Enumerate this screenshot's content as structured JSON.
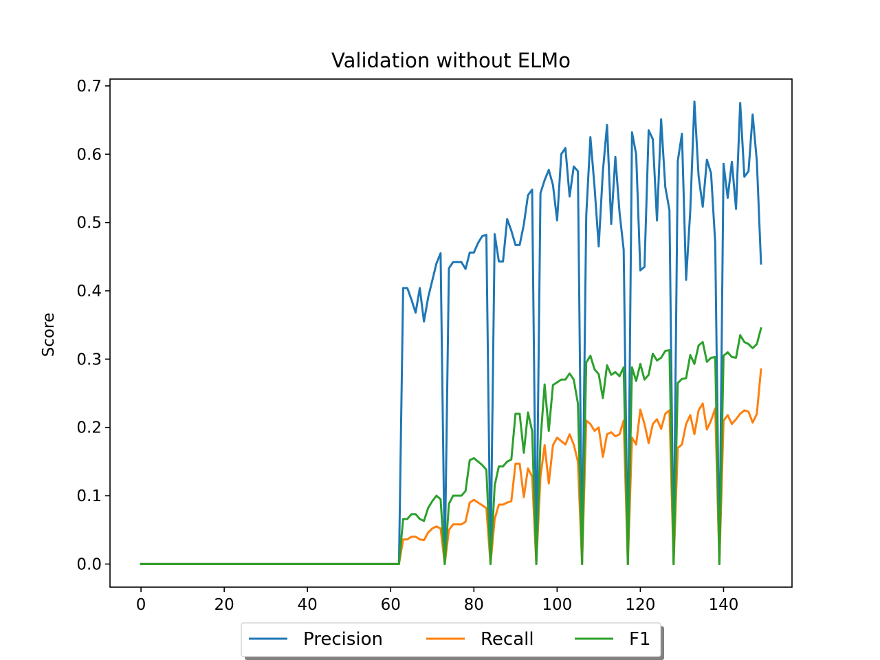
{
  "chart_data": {
    "type": "line",
    "title": "Validation without ELMo",
    "xlabel": "",
    "ylabel": "Score",
    "xlim": [
      -7.45,
      156.45
    ],
    "ylim": [
      -0.0338,
      0.71
    ],
    "xticks": [
      0,
      20,
      40,
      60,
      80,
      100,
      120,
      140
    ],
    "xtick_labels": [
      "0",
      "20",
      "40",
      "60",
      "80",
      "100",
      "120",
      "140"
    ],
    "yticks": [
      0.0,
      0.1,
      0.2,
      0.3,
      0.4,
      0.5,
      0.6,
      0.7
    ],
    "ytick_labels": [
      "0.0",
      "0.1",
      "0.2",
      "0.3",
      "0.4",
      "0.5",
      "0.6",
      "0.7"
    ],
    "grid": false,
    "legend_position": "bottom-center",
    "legend_columns": 3,
    "x_start": 0,
    "x_step": 1,
    "series": [
      {
        "name": "Precision",
        "color": "#1f77b4",
        "values": [
          0,
          0,
          0,
          0,
          0,
          0,
          0,
          0,
          0,
          0,
          0,
          0,
          0,
          0,
          0,
          0,
          0,
          0,
          0,
          0,
          0,
          0,
          0,
          0,
          0,
          0,
          0,
          0,
          0,
          0,
          0,
          0,
          0,
          0,
          0,
          0,
          0,
          0,
          0,
          0,
          0,
          0,
          0,
          0,
          0,
          0,
          0,
          0,
          0,
          0,
          0,
          0,
          0,
          0,
          0,
          0,
          0,
          0,
          0,
          0,
          0,
          0,
          0,
          0.404,
          0.404,
          0.387,
          0.368,
          0.404,
          0.355,
          0.39,
          0.415,
          0.44,
          0.455,
          0,
          0.433,
          0.442,
          0.442,
          0.442,
          0.432,
          0.456,
          0.456,
          0.47,
          0.48,
          0.482,
          0,
          0.483,
          0.443,
          0.443,
          0.505,
          0.488,
          0.467,
          0.467,
          0.497,
          0.54,
          0.548,
          0,
          0.543,
          0.562,
          0.577,
          0.555,
          0.503,
          0.6,
          0.609,
          0.538,
          0.582,
          0.575,
          0,
          0.51,
          0.625,
          0.552,
          0.465,
          0.575,
          0.643,
          0.498,
          0.596,
          0.515,
          0.46,
          0,
          0.632,
          0.6,
          0.43,
          0.435,
          0.635,
          0.622,
          0.503,
          0.651,
          0.552,
          0.518,
          0,
          0.59,
          0.63,
          0.416,
          0.517,
          0.677,
          0.568,
          0.523,
          0.592,
          0.572,
          0.47,
          0,
          0.586,
          0.536,
          0.589,
          0.52,
          0.675,
          0.567,
          0.575,
          0.658,
          0.59,
          0.44
        ]
      },
      {
        "name": "Recall",
        "color": "#ff7f0e",
        "values": [
          0,
          0,
          0,
          0,
          0,
          0,
          0,
          0,
          0,
          0,
          0,
          0,
          0,
          0,
          0,
          0,
          0,
          0,
          0,
          0,
          0,
          0,
          0,
          0,
          0,
          0,
          0,
          0,
          0,
          0,
          0,
          0,
          0,
          0,
          0,
          0,
          0,
          0,
          0,
          0,
          0,
          0,
          0,
          0,
          0,
          0,
          0,
          0,
          0,
          0,
          0,
          0,
          0,
          0,
          0,
          0,
          0,
          0,
          0,
          0,
          0,
          0,
          0,
          0.036,
          0.036,
          0.04,
          0.04,
          0.036,
          0.035,
          0.046,
          0.052,
          0.055,
          0.052,
          0,
          0.05,
          0.058,
          0.058,
          0.058,
          0.062,
          0.09,
          0.094,
          0.09,
          0.086,
          0.082,
          0,
          0.066,
          0.087,
          0.087,
          0.09,
          0.092,
          0.147,
          0.147,
          0.098,
          0.14,
          0.128,
          0,
          0.128,
          0.174,
          0.118,
          0.174,
          0.185,
          0.18,
          0.175,
          0.19,
          0.175,
          0.15,
          0,
          0.21,
          0.205,
          0.195,
          0.2,
          0.157,
          0.19,
          0.193,
          0.187,
          0.19,
          0.21,
          0,
          0.185,
          0.175,
          0.226,
          0.205,
          0.177,
          0.205,
          0.212,
          0.198,
          0.22,
          0.225,
          0,
          0.17,
          0.175,
          0.205,
          0.218,
          0.19,
          0.225,
          0.235,
          0.197,
          0.21,
          0.228,
          0,
          0.21,
          0.218,
          0.205,
          0.212,
          0.22,
          0.225,
          0.223,
          0.207,
          0.22,
          0.285
        ]
      },
      {
        "name": "F1",
        "color": "#2ca02c",
        "values": [
          0,
          0,
          0,
          0,
          0,
          0,
          0,
          0,
          0,
          0,
          0,
          0,
          0,
          0,
          0,
          0,
          0,
          0,
          0,
          0,
          0,
          0,
          0,
          0,
          0,
          0,
          0,
          0,
          0,
          0,
          0,
          0,
          0,
          0,
          0,
          0,
          0,
          0,
          0,
          0,
          0,
          0,
          0,
          0,
          0,
          0,
          0,
          0,
          0,
          0,
          0,
          0,
          0,
          0,
          0,
          0,
          0,
          0,
          0,
          0,
          0,
          0,
          0,
          0.066,
          0.066,
          0.073,
          0.073,
          0.066,
          0.063,
          0.082,
          0.092,
          0.1,
          0.095,
          0,
          0.088,
          0.1,
          0.1,
          0.1,
          0.107,
          0.152,
          0.155,
          0.15,
          0.145,
          0.138,
          0,
          0.115,
          0.143,
          0.143,
          0.15,
          0.153,
          0.22,
          0.22,
          0.163,
          0.222,
          0.195,
          0,
          0.18,
          0.263,
          0.195,
          0.262,
          0.266,
          0.27,
          0.27,
          0.279,
          0.27,
          0.235,
          0,
          0.295,
          0.305,
          0.285,
          0.278,
          0.243,
          0.291,
          0.277,
          0.281,
          0.275,
          0.288,
          0,
          0.288,
          0.268,
          0.293,
          0.27,
          0.277,
          0.308,
          0.298,
          0.302,
          0.312,
          0.313,
          0,
          0.265,
          0.271,
          0.272,
          0.306,
          0.293,
          0.32,
          0.325,
          0.296,
          0.302,
          0.303,
          0,
          0.305,
          0.31,
          0.303,
          0.302,
          0.335,
          0.325,
          0.322,
          0.316,
          0.322,
          0.345
        ]
      }
    ]
  }
}
